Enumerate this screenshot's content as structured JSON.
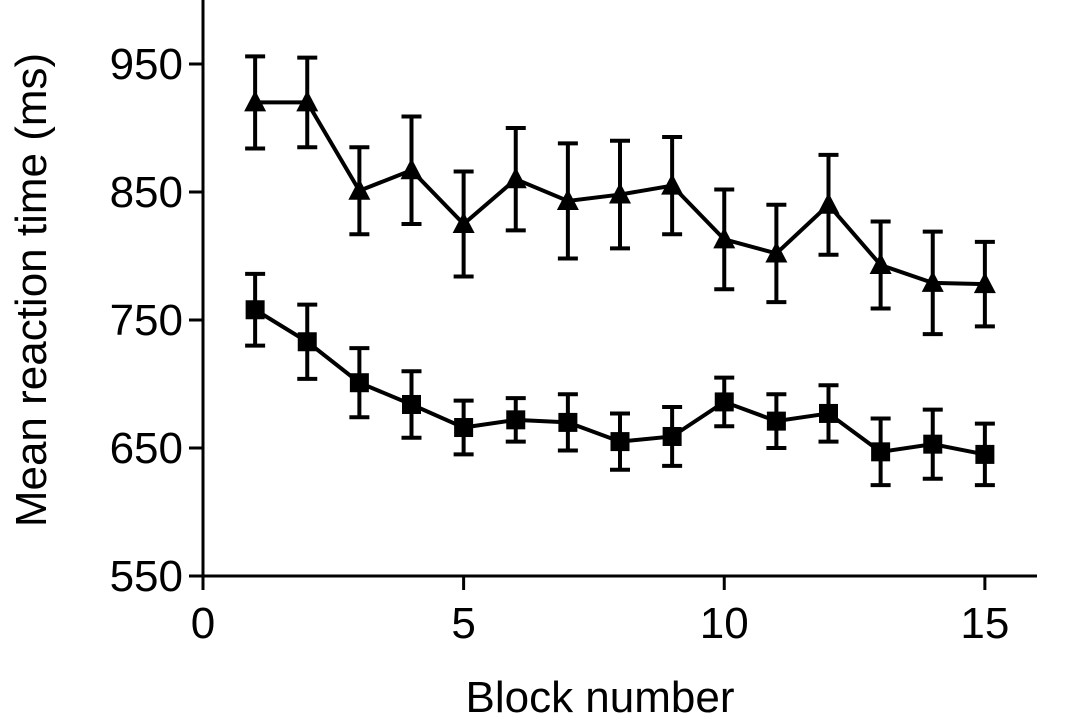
{
  "chart_data": {
    "type": "line",
    "title": "",
    "xlabel": "Block number",
    "ylabel": "Mean reaction time (ms)",
    "xlim": [
      0,
      16
    ],
    "ylim": [
      550,
      1000
    ],
    "xticks": [
      0,
      5,
      10,
      15
    ],
    "yticks": [
      550,
      650,
      750,
      850,
      950
    ],
    "grid": false,
    "legend": "none",
    "x": [
      1,
      2,
      3,
      4,
      5,
      6,
      7,
      8,
      9,
      10,
      11,
      12,
      13,
      14,
      15
    ],
    "series": [
      {
        "marker": "triangle",
        "color": "#000000",
        "values": [
          920,
          920,
          851,
          867,
          825,
          860,
          843,
          848,
          855,
          813,
          802,
          840,
          793,
          779,
          778
        ],
        "errors": [
          36,
          35,
          34,
          42,
          41,
          40,
          45,
          42,
          38,
          39,
          38,
          39,
          34,
          40,
          33
        ]
      },
      {
        "marker": "square",
        "color": "#000000",
        "values": [
          758,
          733,
          701,
          684,
          666,
          672,
          670,
          655,
          659,
          686,
          671,
          677,
          647,
          653,
          645
        ],
        "errors": [
          28,
          29,
          27,
          26,
          21,
          17,
          22,
          22,
          23,
          19,
          21,
          22,
          26,
          27,
          24
        ]
      }
    ]
  }
}
